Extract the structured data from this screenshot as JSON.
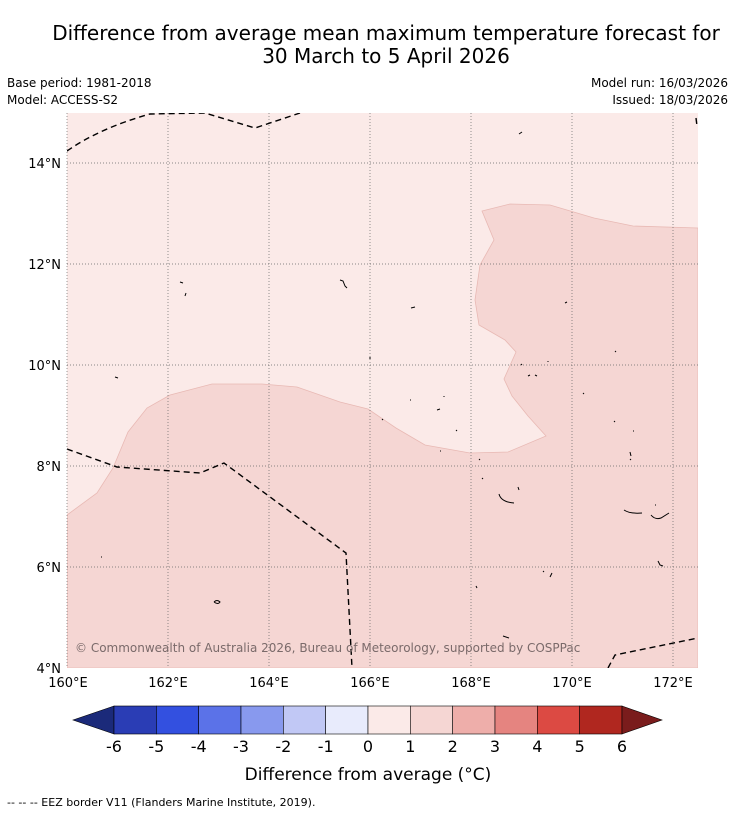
{
  "title_line1": "Difference from average mean maximum temperature forecast for",
  "title_line2": "30 March to 5 April 2026",
  "base_period": "Base period: 1981-2018",
  "model": "Model: ACCESS-S2",
  "model_run": "Model run: 16/03/2026",
  "issued": "Issued: 18/03/2026",
  "copyright": "© Commonwealth of Australia 2026, Bureau of Meteorology, supported by COSPPac",
  "lat_labels": [
    "14°N",
    "12°N",
    "10°N",
    "8°N",
    "6°N",
    "4°N"
  ],
  "lon_labels": [
    "160°E",
    "162°E",
    "164°E",
    "166°E",
    "168°E",
    "170°E",
    "172°E"
  ],
  "colorbar": {
    "ticks": [
      "-6",
      "-5",
      "-4",
      "-3",
      "-2",
      "-1",
      "0",
      "1",
      "2",
      "3",
      "4",
      "5",
      "6"
    ],
    "label": "Difference from average (°C)",
    "under_color": "#1b2a7a",
    "over_color": "#7a1c1c",
    "colors": [
      "#2a3db5",
      "#3350e0",
      "#5b72e8",
      "#8899ee",
      "#c1c8f5",
      "#e8ebfc",
      "#fbeae8",
      "#f5d6d3",
      "#eeaeaa",
      "#e58480",
      "#dc4a43",
      "#b0271f"
    ]
  },
  "map_colors": {
    "band_0_1": "#fbeae8",
    "band_1_2": "#f5d6d3"
  },
  "footer": "-- -- -- EEZ border V11 (Flanders Marine Institute, 2019)."
}
